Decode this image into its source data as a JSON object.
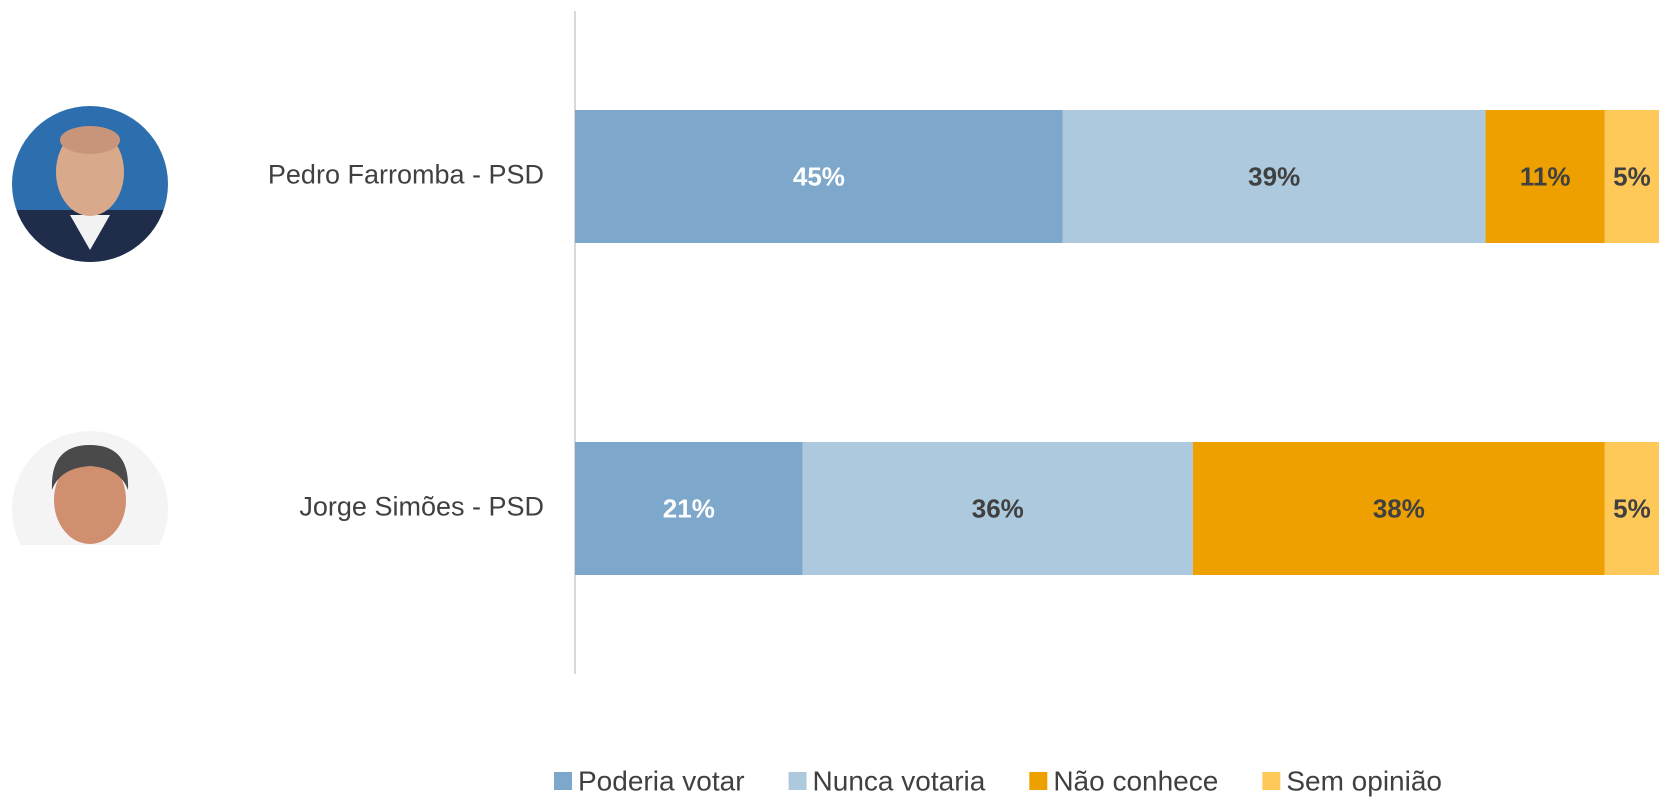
{
  "chart_data": {
    "type": "stacked-bar",
    "orientation": "horizontal",
    "categories": [
      "Pedro Farromba - PSD",
      "Jorge Simões - PSD"
    ],
    "series": [
      {
        "name": "Poderia votar",
        "color": "#7ea8cb",
        "values": [
          45,
          21
        ],
        "value_labels": [
          "45%",
          "21%"
        ]
      },
      {
        "name": "Nunca votaria",
        "color": "#adc9de",
        "values": [
          39,
          36
        ],
        "value_labels": [
          "39%",
          "36%"
        ]
      },
      {
        "name": "Não conhece",
        "color": "#eda000",
        "values": [
          11,
          38
        ],
        "value_labels": [
          "11%",
          "38%"
        ]
      },
      {
        "name": "Sem opinião",
        "color": "#ffc95a",
        "values": [
          5,
          5
        ],
        "value_labels": [
          "5%",
          "5%"
        ]
      }
    ],
    "xlim": [
      0,
      100
    ]
  }
}
